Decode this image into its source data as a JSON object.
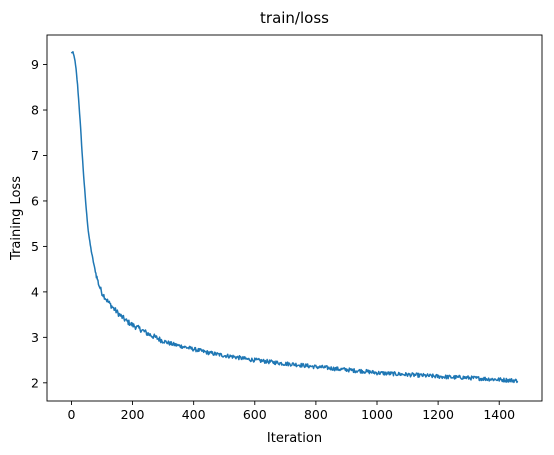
{
  "chart_data": {
    "type": "line",
    "title": "train/loss",
    "xlabel": "Iteration",
    "ylabel": "Training Loss",
    "xlim": [
      -80,
      1540
    ],
    "ylim": [
      1.6,
      9.65
    ],
    "xticks": [
      0,
      200,
      400,
      600,
      800,
      1000,
      1200,
      1400
    ],
    "yticks": [
      2,
      3,
      4,
      5,
      6,
      7,
      8,
      9
    ],
    "grid": false,
    "color": "#1f77b4",
    "series": [
      {
        "x": [
          0,
          5,
          10,
          15,
          20,
          25,
          30,
          35,
          40,
          45,
          50,
          55,
          60,
          65,
          70,
          75,
          80,
          85,
          90,
          100,
          110,
          120,
          140,
          160,
          180,
          200,
          225,
          250,
          275,
          300,
          325,
          350,
          375,
          400,
          425,
          450,
          475,
          500,
          525,
          550,
          575,
          600,
          625,
          650,
          675,
          700,
          725,
          750,
          775,
          800,
          825,
          850,
          875,
          900,
          925,
          950,
          975,
          1000,
          1025,
          1050,
          1075,
          1100,
          1125,
          1150,
          1175,
          1200,
          1225,
          1250,
          1275,
          1300,
          1325,
          1350,
          1375,
          1400,
          1425,
          1450,
          1460
        ],
        "y": [
          9.27,
          9.26,
          9.15,
          8.9,
          8.55,
          8.1,
          7.6,
          7.05,
          6.55,
          6.1,
          5.7,
          5.35,
          5.1,
          4.9,
          4.72,
          4.55,
          4.4,
          4.28,
          4.15,
          3.98,
          3.88,
          3.78,
          3.62,
          3.48,
          3.36,
          3.27,
          3.18,
          3.08,
          3.0,
          2.92,
          2.86,
          2.82,
          2.78,
          2.74,
          2.7,
          2.66,
          2.63,
          2.6,
          2.58,
          2.55,
          2.52,
          2.5,
          2.48,
          2.46,
          2.44,
          2.42,
          2.41,
          2.39,
          2.37,
          2.35,
          2.34,
          2.32,
          2.3,
          2.29,
          2.27,
          2.26,
          2.24,
          2.22,
          2.21,
          2.2,
          2.19,
          2.18,
          2.17,
          2.16,
          2.15,
          2.14,
          2.13,
          2.12,
          2.12,
          2.11,
          2.1,
          2.09,
          2.08,
          2.07,
          2.06,
          2.05,
          2.04
        ]
      }
    ]
  }
}
